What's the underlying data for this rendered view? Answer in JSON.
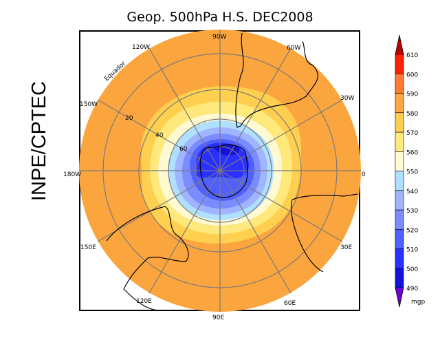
{
  "title": "Geop. 500hPa H.S. DEC2008",
  "organization": "INPE/CPTEC",
  "map": {
    "projection": "south polar stereographic",
    "lon_labels": {
      "top": "90W",
      "top_left": "120W",
      "top_right": "60W",
      "left_upper": "150W",
      "right_upper": "30W",
      "left": "180W",
      "right": "0",
      "left_lower": "150E",
      "right_lower": "30E",
      "bottom_left": "120E",
      "bottom_right": "60E",
      "bottom": "90E"
    },
    "lat_labels": [
      "20",
      "40",
      "60"
    ],
    "equator_label": "Equador"
  },
  "colorbar": {
    "unit": "mgp",
    "levels": [
      "490",
      "500",
      "510",
      "520",
      "530",
      "540",
      "550",
      "560",
      "570",
      "580",
      "590",
      "600",
      "610"
    ],
    "colors": [
      "#1414d8",
      "#2a30ff",
      "#5060ff",
      "#7a8cff",
      "#a0b4ff",
      "#b0e0ff",
      "#fffad2",
      "#ffe87c",
      "#ffd050",
      "#ffa840",
      "#ff7a34",
      "#ff2000"
    ],
    "under_color": "#7000d8",
    "over_color": "#c00000"
  }
}
